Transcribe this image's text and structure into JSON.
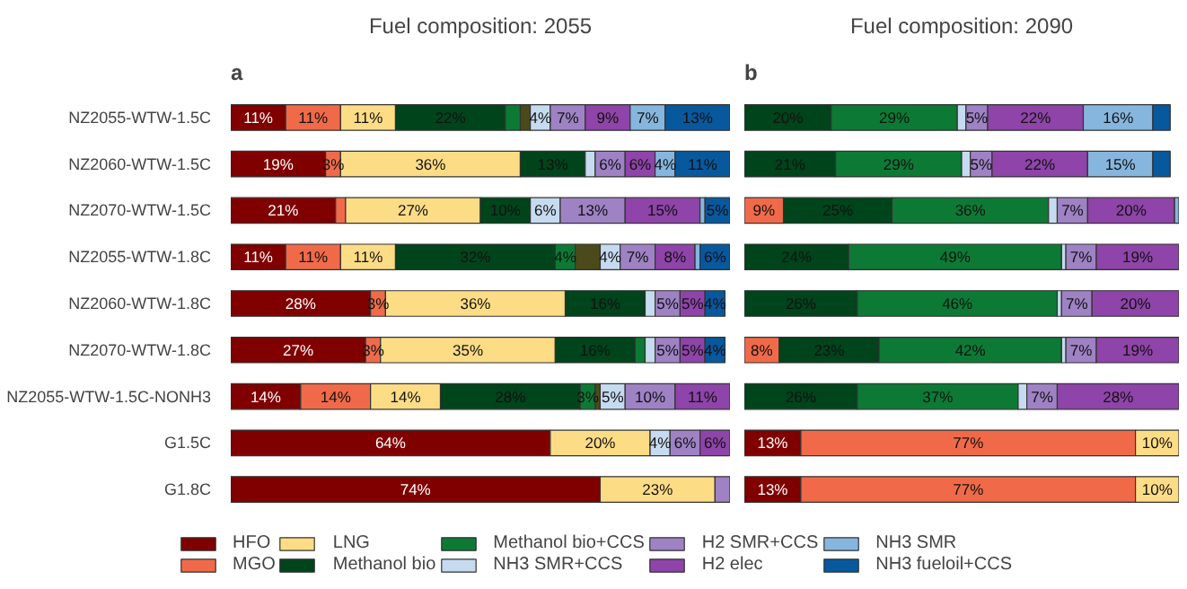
{
  "chart_data": [
    {
      "type": "bar",
      "orientation": "horizontal",
      "stacked": true,
      "title": "Fuel composition: 2055",
      "annotations": [
        "a"
      ],
      "tick_labels": "y",
      "legend": "bottom",
      "grid": false,
      "categories": [
        "NZ2055-WTW-1.5C",
        "NZ2060-WTW-1.5C",
        "NZ2070-WTW-1.5C",
        "NZ2055-WTW-1.8C",
        "NZ2060-WTW-1.8C",
        "NZ2070-WTW-1.8C",
        "NZ2055-WTW-1.5C-NONH3",
        "G1.5C",
        "G1.8C"
      ],
      "xlim": [
        0,
        100
      ],
      "series": [
        {
          "name": "HFO",
          "color": "#800000",
          "values": [
            11,
            19,
            21,
            11,
            28,
            27,
            14,
            64,
            74
          ],
          "value_labels": [
            "11%",
            "19%",
            "21%",
            "11%",
            "28%",
            "27%",
            "14%",
            "64%",
            "74%"
          ]
        },
        {
          "name": "MGO",
          "color": "#f06a4a",
          "values": [
            11,
            3,
            2,
            11,
            3,
            3,
            14,
            null,
            null
          ],
          "value_labels": [
            "11%",
            "3%",
            null,
            "11%",
            "3%",
            "3%",
            "14%",
            null,
            null
          ]
        },
        {
          "name": "LNG",
          "color": "#fddc86",
          "values": [
            11,
            36,
            27,
            11,
            36,
            35,
            14,
            20,
            23
          ],
          "value_labels": [
            "11%",
            "36%",
            "27%",
            "11%",
            "36%",
            "35%",
            "14%",
            "20%",
            "23%"
          ]
        },
        {
          "name": "Methanol bio",
          "color": "#00441b",
          "values": [
            22,
            13,
            10,
            32,
            16,
            16,
            28,
            null,
            null
          ],
          "value_labels": [
            "22%",
            "13%",
            "10%",
            "32%",
            "16%",
            "16%",
            "28%",
            null,
            null
          ]
        },
        {
          "name": "Methanol bio+CCS",
          "color": "#0c7a35",
          "values": [
            3,
            null,
            null,
            4,
            null,
            2,
            3,
            null,
            null
          ],
          "value_labels": [
            null,
            null,
            null,
            "4%",
            null,
            null,
            "3%",
            null,
            null
          ]
        },
        {
          "color": "#4a4a1a",
          "values": [
            2,
            null,
            null,
            5,
            null,
            null,
            1,
            null,
            null
          ],
          "value_labels": [
            null,
            null,
            null,
            null,
            null,
            null,
            null,
            null,
            null
          ]
        },
        {
          "name": "NH3 SMR+CCS",
          "color": "#c6dbef",
          "values": [
            4,
            2,
            6,
            4,
            2,
            2,
            5,
            4,
            null
          ],
          "value_labels": [
            "4%",
            null,
            "6%",
            "4%",
            null,
            null,
            "5%",
            "4%",
            null
          ]
        },
        {
          "name": "H2 SMR+CCS",
          "color": "#9e82c4",
          "values": [
            7,
            6,
            13,
            7,
            5,
            5,
            10,
            6,
            3
          ],
          "value_labels": [
            "7%",
            "6%",
            "13%",
            "7%",
            "5%",
            "5%",
            "10%",
            "6%",
            null
          ]
        },
        {
          "name": "H2 elec",
          "color": "#8e44a8",
          "values": [
            9,
            6,
            15,
            8,
            5,
            5,
            11,
            6,
            null
          ],
          "value_labels": [
            "9%",
            "6%",
            "15%",
            "8%",
            "5%",
            "5%",
            "11%",
            "6%",
            null
          ]
        },
        {
          "name": "NH3 SMR",
          "color": "#86b6de",
          "values": [
            7,
            4,
            1,
            1,
            null,
            null,
            null,
            null,
            null
          ],
          "value_labels": [
            "7%",
            "4%",
            null,
            null,
            null,
            null,
            null,
            null,
            null
          ]
        },
        {
          "name": "NH3 fueloil+CCS",
          "color": "#08589e",
          "values": [
            13,
            11,
            5,
            6,
            4,
            4,
            null,
            null,
            null
          ],
          "value_labels": [
            "13%",
            "11%",
            "5%",
            "6%",
            "4%",
            "4%",
            null,
            null,
            null
          ]
        }
      ]
    },
    {
      "type": "bar",
      "orientation": "horizontal",
      "stacked": true,
      "title": "Fuel composition: 2090",
      "annotations": [
        "b"
      ],
      "tick_labels": false,
      "grid": false,
      "categories": [
        null,
        null,
        null,
        null,
        null,
        null,
        null,
        null,
        null
      ],
      "xlim": [
        0,
        100
      ],
      "series": [
        {
          "color": "#800000",
          "values": [
            null,
            null,
            null,
            null,
            null,
            null,
            null,
            13,
            13
          ],
          "value_labels": [
            null,
            null,
            null,
            null,
            null,
            null,
            null,
            "13%",
            "13%"
          ]
        },
        {
          "color": "#f06a4a",
          "values": [
            null,
            null,
            9,
            null,
            null,
            8,
            null,
            77,
            77
          ],
          "value_labels": [
            null,
            null,
            "9%",
            null,
            null,
            "8%",
            null,
            "77%",
            "77%"
          ]
        },
        {
          "color": "#fddc86",
          "values": [
            null,
            null,
            null,
            null,
            null,
            null,
            null,
            10,
            10
          ],
          "value_labels": [
            null,
            null,
            null,
            null,
            null,
            null,
            null,
            "10%",
            "10%"
          ]
        },
        {
          "color": "#00441b",
          "values": [
            20,
            21,
            25,
            24,
            26,
            23,
            26,
            null,
            null
          ],
          "value_labels": [
            "20%",
            "21%",
            "25%",
            "24%",
            "26%",
            "23%",
            "26%",
            null,
            null
          ]
        },
        {
          "color": "#0c7a35",
          "values": [
            29,
            29,
            36,
            49,
            46,
            42,
            37,
            null,
            null
          ],
          "value_labels": [
            "29%",
            "29%",
            "36%",
            "49%",
            "46%",
            "42%",
            "37%",
            null,
            null
          ]
        },
        {
          "color": "#4a4a1a",
          "values": [
            null,
            null,
            null,
            null,
            null,
            null,
            null,
            null,
            null
          ],
          "value_labels": [
            null,
            null,
            null,
            null,
            null,
            null,
            null,
            null,
            null
          ]
        },
        {
          "color": "#c6dbef",
          "values": [
            2,
            2,
            2,
            1,
            1,
            1,
            2,
            null,
            null
          ],
          "value_labels": [
            null,
            null,
            null,
            null,
            null,
            null,
            null,
            null,
            null
          ]
        },
        {
          "color": "#9e82c4",
          "values": [
            5,
            5,
            7,
            7,
            7,
            7,
            7,
            null,
            null
          ],
          "value_labels": [
            "5%",
            "5%",
            "7%",
            "7%",
            "7%",
            "7%",
            "7%",
            null,
            null
          ]
        },
        {
          "color": "#8e44a8",
          "values": [
            22,
            22,
            20,
            19,
            20,
            19,
            28,
            null,
            null
          ],
          "value_labels": [
            "22%",
            "22%",
            "20%",
            "19%",
            "20%",
            "19%",
            "28%",
            null,
            null
          ]
        },
        {
          "color": "#86b6de",
          "values": [
            16,
            15,
            1,
            null,
            null,
            null,
            null,
            null,
            null
          ],
          "value_labels": [
            "16%",
            "15%",
            null,
            null,
            null,
            null,
            null,
            null,
            null
          ]
        },
        {
          "color": "#08589e",
          "values": [
            4,
            4,
            null,
            null,
            null,
            null,
            null,
            null,
            null
          ],
          "value_labels": [
            null,
            null,
            null,
            null,
            null,
            null,
            null,
            null,
            null
          ]
        }
      ]
    }
  ]
}
